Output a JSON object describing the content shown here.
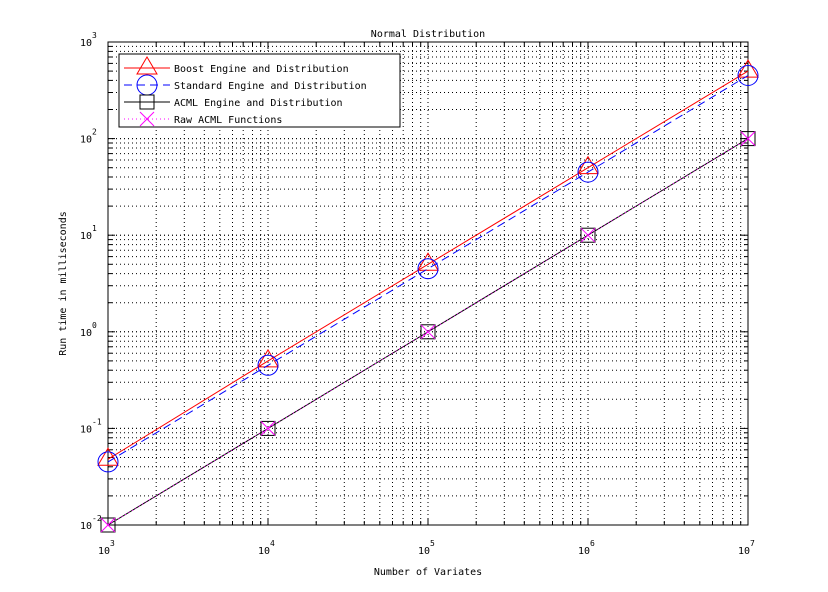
{
  "chart_data": {
    "type": "line",
    "title": "Normal Distribution",
    "xlabel": "Number of Variates",
    "ylabel": "Run time in milliseconds",
    "xscale": "log",
    "yscale": "log",
    "xlim": [
      1000,
      10000000
    ],
    "ylim": [
      0.01,
      1000
    ],
    "grid": true,
    "legend_position": "top-left",
    "x_tick_labels": [
      {
        "base": "10",
        "exp": "3"
      },
      {
        "base": "10",
        "exp": "4"
      },
      {
        "base": "10",
        "exp": "5"
      },
      {
        "base": "10",
        "exp": "6"
      },
      {
        "base": "10",
        "exp": "7"
      }
    ],
    "y_tick_labels": [
      {
        "base": "10",
        "exp": "-2"
      },
      {
        "base": "10",
        "exp": "-1"
      },
      {
        "base": "10",
        "exp": "0"
      },
      {
        "base": "10",
        "exp": "1"
      },
      {
        "base": "10",
        "exp": "2"
      },
      {
        "base": "10",
        "exp": "3"
      }
    ],
    "x": [
      1000,
      10000,
      100000,
      1000000,
      10000000
    ],
    "series": [
      {
        "name": "Boost Engine and Distribution",
        "values": [
          0.048,
          0.5,
          5,
          50,
          500
        ],
        "color": "#ff0000",
        "line_style": "solid",
        "marker": "triangle"
      },
      {
        "name": "Standard Engine and Distribution",
        "values": [
          0.045,
          0.45,
          4.5,
          45,
          450
        ],
        "color": "#0000ff",
        "line_style": "dashed",
        "marker": "circle"
      },
      {
        "name": "ACML Engine and Distribution",
        "values": [
          0.01,
          0.1,
          1,
          10,
          100
        ],
        "color": "#000000",
        "line_style": "solid",
        "marker": "square"
      },
      {
        "name": "Raw ACML Functions",
        "values": [
          0.01,
          0.1,
          1,
          10,
          100
        ],
        "color": "#ff00ff",
        "line_style": "dotted",
        "marker": "x"
      }
    ]
  }
}
